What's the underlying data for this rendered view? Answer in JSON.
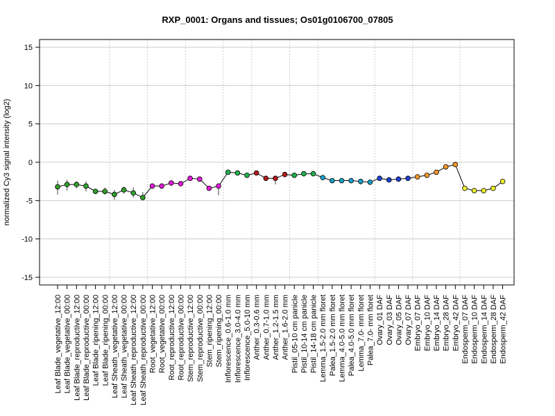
{
  "chart_data": {
    "type": "line",
    "title": "RXP_0001: Organs and tissues; Os01g0106700_07805",
    "xlabel": "",
    "ylabel": "normalized Cy3 signal intensity (log2)",
    "ylim": [
      -16,
      16
    ],
    "yticks": [
      15,
      10,
      5,
      0,
      -5,
      -10,
      -15
    ],
    "grid": true,
    "legend": "none",
    "line_color": "#000000",
    "hgrid_color": "#cccccc",
    "vgrid_color": "#cccccc",
    "categories": [
      "Leaf Blade_vegetative_12:00",
      "Leaf Blade_vegetative_00:00",
      "Leaf Blade_reproductive_12:00",
      "Leaf Blade_reproductive_00:00",
      "Leaf Blade_ripening_12:00",
      "Leaf Blade_ripening_00:00",
      "Leaf Sheath_vegetative_12:00",
      "Leaf Sheath_vegetative_00:00",
      "Leaf Sheath_reproductive_12:00",
      "Leaf Sheath_reproductive_00:00",
      "Root_vegetative_12:00",
      "Root_vegetative_00:00",
      "Root_reproductive_12:00",
      "Root_reproductive_00:00",
      "Stem_reproductive_12:00",
      "Stem_reproductive_00:00",
      "Stem_ripening_12:00",
      "Stem_ripening_00:00",
      "Inflorescence_0.6-1.0 mm",
      "Inflorescence_3.0-4.0 mm",
      "Inflorescence_5.0-10 mm",
      "Anther_0.3-0.6 mm",
      "Anther_0.7-1.0 mm",
      "Anther_1.2-1.5 mm",
      "Anther_1.6-2.0 mm",
      "Pistil_05-10 cm panicle",
      "Pistil_10-14 cm panicle",
      "Pistil_14-18 cm panicle",
      "Lemma_1.5-2.0 mm floret",
      "Palea_1.5-2.0 mm floret",
      "Lemma_4.0-5.0 mm floret",
      "Palea_4.0-5.0 mm floret",
      "Lemma_7.0- mm floret",
      "Palea_7.0- mm floret",
      "Ovary_01 DAF",
      "Ovary_03 DAF",
      "Ovary_05 DAF",
      "Ovary_07 DAF",
      "Embryo_07 DAF",
      "Embryo_10 DAF",
      "Embryo_14 DAF",
      "Embryo_28 DAF",
      "Embryo_42 DAF",
      "Endosperm_07 DAF",
      "Endosperm_10 DAF",
      "Endosperm_14 DAF",
      "Endosperm_28 DAF",
      "Endosperm_42 DAF"
    ],
    "values": [
      -3.2,
      -2.9,
      -2.9,
      -3.1,
      -3.8,
      -3.8,
      -4.2,
      -3.6,
      -4.0,
      -4.6,
      -3.1,
      -3.1,
      -2.7,
      -2.8,
      -2.1,
      -2.2,
      -3.4,
      -3.1,
      -1.3,
      -1.4,
      -1.7,
      -1.4,
      -2.1,
      -2.1,
      -1.6,
      -1.7,
      -1.5,
      -1.5,
      -2.0,
      -2.4,
      -2.4,
      -2.4,
      -2.5,
      -2.6,
      -2.1,
      -2.3,
      -2.2,
      -2.1,
      -1.9,
      -1.7,
      -1.3,
      -0.6,
      -0.3,
      -3.4,
      -3.7,
      -3.7,
      -3.4,
      -2.5
    ],
    "error_low": [
      -4.2,
      -3.7,
      -3.4,
      -3.8,
      -3.9,
      -4.2,
      -4.9,
      -4.1,
      -4.6,
      -4.8,
      -3.3,
      -3.3,
      -3.1,
      -3.0,
      -2.4,
      -2.4,
      -3.6,
      -4.3,
      -1.4,
      -1.5,
      -1.8,
      -1.5,
      -2.2,
      -2.9,
      -1.7,
      -1.8,
      -1.6,
      -1.6,
      -2.1,
      -2.5,
      -2.5,
      -2.5,
      -2.9,
      -2.8,
      -2.2,
      -2.4,
      -2.3,
      -2.2,
      -2.0,
      -1.8,
      -1.4,
      -0.7,
      -0.4,
      -3.5,
      -3.9,
      -3.9,
      -3.5,
      -2.6
    ],
    "error_high": [
      -2.4,
      -2.3,
      -2.5,
      -2.5,
      -3.6,
      -3.3,
      -3.6,
      -3.2,
      -3.3,
      -3.9,
      -2.9,
      -2.8,
      -2.4,
      -2.6,
      -1.8,
      -2.0,
      -3.2,
      -2.9,
      -1.2,
      -1.3,
      -1.6,
      -1.3,
      -1.9,
      -1.9,
      -1.4,
      -1.6,
      -1.4,
      -1.4,
      -1.9,
      -2.3,
      -2.3,
      -2.3,
      -2.2,
      -2.4,
      -2.0,
      -2.2,
      -2.1,
      -2.0,
      -1.8,
      -1.6,
      -1.2,
      -0.5,
      -0.1,
      -3.3,
      -3.6,
      -3.6,
      -3.3,
      -2.3
    ],
    "colors": [
      "#33a02c",
      "#33a02c",
      "#33a02c",
      "#33a02c",
      "#33a02c",
      "#33a02c",
      "#33a02c",
      "#33a02c",
      "#33a02c",
      "#33a02c",
      "#e31ad7",
      "#e31ad7",
      "#e31ad7",
      "#e31ad7",
      "#e31ad7",
      "#e31ad7",
      "#e31ad7",
      "#e31ad7",
      "#22b14c",
      "#22b14c",
      "#22b14c",
      "#b21a1a",
      "#b21a1a",
      "#b21a1a",
      "#b21a1a",
      "#22b14c",
      "#22b14c",
      "#22b14c",
      "#1aa0c8",
      "#1aa0c8",
      "#1aa0c8",
      "#1aa0c8",
      "#1aa0c8",
      "#1aa0c8",
      "#1f3fd6",
      "#1f3fd6",
      "#1f3fd6",
      "#1f3fd6",
      "#f59a2a",
      "#f59a2a",
      "#f59a2a",
      "#f59a2a",
      "#f59a2a",
      "#eef02a",
      "#eef02a",
      "#eef02a",
      "#eef02a",
      "#eef02a"
    ],
    "group_boundaries_after_index": [
      5,
      9,
      13,
      17,
      20,
      24,
      27,
      33,
      37,
      42
    ]
  }
}
